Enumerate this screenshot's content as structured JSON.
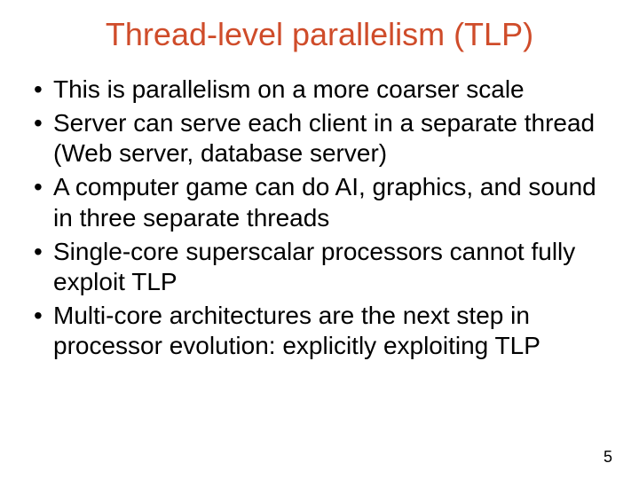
{
  "slide": {
    "title": "Thread-level parallelism (TLP)",
    "title_color": "#cf4c2a",
    "title_fontsize": 36,
    "title_fontweight": 400,
    "body_color": "#000000",
    "body_fontsize": 28,
    "body_lineheight": 1.22,
    "background_color": "#ffffff",
    "bullets": [
      "This is parallelism on a more coarser scale",
      "Server can serve each client in a separate thread (Web server, database server)",
      "A computer game can do AI, graphics, and sound in three separate threads",
      "Single-core superscalar processors cannot fully exploit TLP",
      "Multi-core architectures are the next step in processor evolution: explicitly exploiting TLP"
    ],
    "page_number": "5"
  }
}
